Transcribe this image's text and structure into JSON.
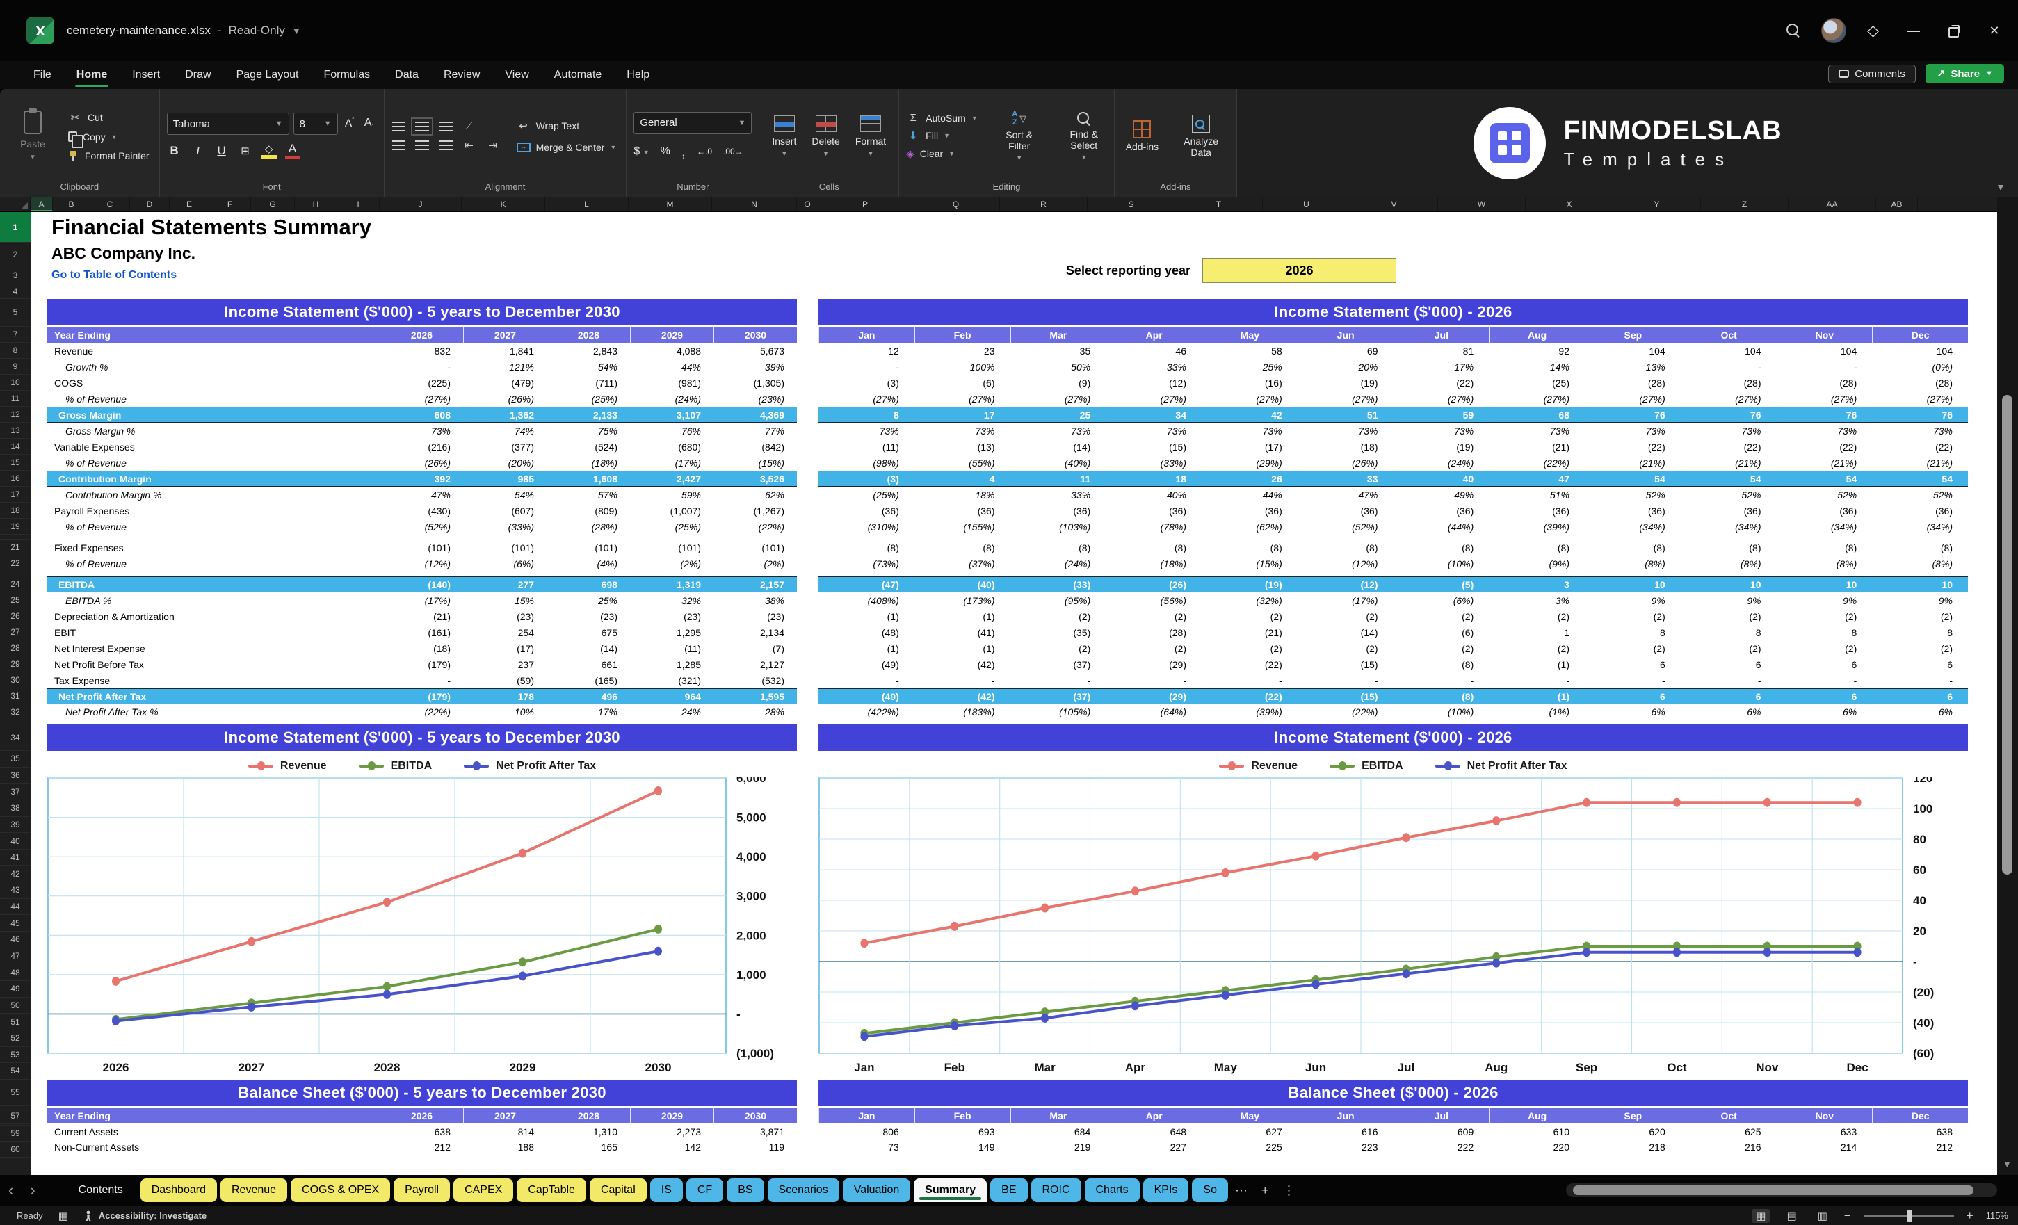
{
  "window": {
    "file": "cemetery-maintenance.xlsx",
    "separator": "-",
    "mode": "Read-Only"
  },
  "menu": {
    "tabs": [
      "File",
      "Home",
      "Insert",
      "Draw",
      "Page Layout",
      "Formulas",
      "Data",
      "Review",
      "View",
      "Automate",
      "Help"
    ],
    "active": "Home",
    "comments_label": "Comments",
    "share_label": "Share"
  },
  "ribbon": {
    "clipboard": {
      "label": "Clipboard",
      "paste": "Paste",
      "cut": "Cut",
      "copy": "Copy",
      "format_painter": "Format Painter"
    },
    "font": {
      "label": "Font",
      "family": "Tahoma",
      "size": "8",
      "bold": "B",
      "italic": "I",
      "underline": "U"
    },
    "alignment": {
      "label": "Alignment",
      "wrap_text": "Wrap Text",
      "merge_center": "Merge & Center"
    },
    "number": {
      "label": "Number",
      "format": "General",
      "currency": "$",
      "percent": "%",
      "comma": ",",
      "inc_dec": "←.0",
      "dec_dec": ".00→"
    },
    "cells": {
      "label": "Cells",
      "insert": "Insert",
      "delete": "Delete",
      "format": "Format"
    },
    "editing": {
      "label": "Editing",
      "autosum": "AutoSum",
      "fill": "Fill",
      "clear": "Clear",
      "sort_filter": "Sort & Filter",
      "find_select": "Find & Select"
    },
    "addins": {
      "label": "Add-ins",
      "addins": "Add-ins",
      "analyze": "Analyze Data"
    },
    "logo": {
      "line1": "FINMODELSLAB",
      "line2": "Templates"
    }
  },
  "colors": {
    "banner": "#4242D8",
    "table_header": "#6C6CE2",
    "subtotal": "#41B3E6",
    "selected_year_fill": "#F6EE71",
    "link": "#1155CC",
    "tab_yellow": "#F2E969",
    "tab_blue": "#4FB7E8",
    "active_tab_underline": "#1F7244",
    "share_green": "#23A047",
    "revenue": "#E8756D",
    "ebitda": "#6A9A42",
    "npat": "#4853C9"
  },
  "sheet": {
    "columns": [
      "A",
      "B",
      "C",
      "D",
      "E",
      "F",
      "G",
      "H",
      "I",
      "J",
      "K",
      "L",
      "M",
      "N",
      "O",
      "P",
      "Q",
      "R",
      "S",
      "T",
      "U",
      "V",
      "W",
      "X",
      "Y",
      "Z",
      "AA",
      "AB"
    ],
    "row_range": [
      1,
      60
    ],
    "title": "Financial Statements Summary",
    "company": "ABC Company Inc.",
    "toc_link": "Go to Table of Contents",
    "reporting_year_label": "Select reporting year",
    "reporting_year": "2026",
    "is5": {
      "banner": "Income Statement ($'000) - 5 years to December 2030",
      "header": "Year Ending",
      "years": [
        "2026",
        "2027",
        "2028",
        "2029",
        "2030"
      ]
    },
    "is12": {
      "banner": "Income Statement ($'000) - 2026",
      "months": [
        "Jan",
        "Feb",
        "Mar",
        "Apr",
        "May",
        "Jun",
        "Jul",
        "Aug",
        "Sep",
        "Oct",
        "Nov",
        "Dec"
      ]
    },
    "is_rows": [
      {
        "label": "Revenue",
        "style": "normal",
        "y": [
          "832",
          "1,841",
          "2,843",
          "4,088",
          "5,673"
        ],
        "m": [
          "12",
          "23",
          "35",
          "46",
          "58",
          "69",
          "81",
          "92",
          "104",
          "104",
          "104",
          "104"
        ]
      },
      {
        "label": "Growth %",
        "style": "pct",
        "y": [
          "-",
          "121%",
          "54%",
          "44%",
          "39%"
        ],
        "m": [
          "-",
          "100%",
          "50%",
          "33%",
          "25%",
          "20%",
          "17%",
          "14%",
          "13%",
          "-",
          "-",
          "(0%)"
        ]
      },
      {
        "label": "COGS",
        "style": "normal",
        "y": [
          "(225)",
          "(479)",
          "(711)",
          "(981)",
          "(1,305)"
        ],
        "m": [
          "(3)",
          "(6)",
          "(9)",
          "(12)",
          "(16)",
          "(19)",
          "(22)",
          "(25)",
          "(28)",
          "(28)",
          "(28)",
          "(28)"
        ]
      },
      {
        "label": "% of Revenue",
        "style": "pct",
        "y": [
          "(27%)",
          "(26%)",
          "(25%)",
          "(24%)",
          "(23%)"
        ],
        "m": [
          "(27%)",
          "(27%)",
          "(27%)",
          "(27%)",
          "(27%)",
          "(27%)",
          "(27%)",
          "(27%)",
          "(27%)",
          "(27%)",
          "(27%)",
          "(27%)"
        ]
      },
      {
        "label": "Gross Margin",
        "style": "total",
        "y": [
          "608",
          "1,362",
          "2,133",
          "3,107",
          "4,369"
        ],
        "m": [
          "8",
          "17",
          "25",
          "34",
          "42",
          "51",
          "59",
          "68",
          "76",
          "76",
          "76",
          "76"
        ]
      },
      {
        "label": "Gross Margin %",
        "style": "pct",
        "y": [
          "73%",
          "74%",
          "75%",
          "76%",
          "77%"
        ],
        "m": [
          "73%",
          "73%",
          "73%",
          "73%",
          "73%",
          "73%",
          "73%",
          "73%",
          "73%",
          "73%",
          "73%",
          "73%"
        ]
      },
      {
        "label": "Variable Expenses",
        "style": "normal",
        "y": [
          "(216)",
          "(377)",
          "(524)",
          "(680)",
          "(842)"
        ],
        "m": [
          "(11)",
          "(13)",
          "(14)",
          "(15)",
          "(17)",
          "(18)",
          "(19)",
          "(21)",
          "(22)",
          "(22)",
          "(22)",
          "(22)"
        ]
      },
      {
        "label": "% of Revenue",
        "style": "pct",
        "y": [
          "(26%)",
          "(20%)",
          "(18%)",
          "(17%)",
          "(15%)"
        ],
        "m": [
          "(98%)",
          "(55%)",
          "(40%)",
          "(33%)",
          "(29%)",
          "(26%)",
          "(24%)",
          "(22%)",
          "(21%)",
          "(21%)",
          "(21%)",
          "(21%)"
        ]
      },
      {
        "label": "Contribution Margin",
        "style": "total",
        "y": [
          "392",
          "985",
          "1,608",
          "2,427",
          "3,526"
        ],
        "m": [
          "(3)",
          "4",
          "11",
          "18",
          "26",
          "33",
          "40",
          "47",
          "54",
          "54",
          "54",
          "54"
        ]
      },
      {
        "label": "Contribution Margin %",
        "style": "pct",
        "y": [
          "47%",
          "54%",
          "57%",
          "59%",
          "62%"
        ],
        "m": [
          "(25%)",
          "18%",
          "33%",
          "40%",
          "44%",
          "47%",
          "49%",
          "51%",
          "52%",
          "52%",
          "52%",
          "52%"
        ]
      },
      {
        "label": "Payroll Expenses",
        "style": "normal",
        "y": [
          "(430)",
          "(607)",
          "(809)",
          "(1,007)",
          "(1,267)"
        ],
        "m": [
          "(36)",
          "(36)",
          "(36)",
          "(36)",
          "(36)",
          "(36)",
          "(36)",
          "(36)",
          "(36)",
          "(36)",
          "(36)",
          "(36)"
        ]
      },
      {
        "label": "% of Revenue",
        "style": "pct",
        "y": [
          "(52%)",
          "(33%)",
          "(28%)",
          "(25%)",
          "(22%)"
        ],
        "m": [
          "(310%)",
          "(155%)",
          "(103%)",
          "(78%)",
          "(62%)",
          "(52%)",
          "(44%)",
          "(39%)",
          "(34%)",
          "(34%)",
          "(34%)",
          "(34%)"
        ]
      },
      {
        "style": "spacer"
      },
      {
        "label": "Fixed Expenses",
        "style": "normal",
        "y": [
          "(101)",
          "(101)",
          "(101)",
          "(101)",
          "(101)"
        ],
        "m": [
          "(8)",
          "(8)",
          "(8)",
          "(8)",
          "(8)",
          "(8)",
          "(8)",
          "(8)",
          "(8)",
          "(8)",
          "(8)",
          "(8)"
        ]
      },
      {
        "label": "% of Revenue",
        "style": "pct",
        "y": [
          "(12%)",
          "(6%)",
          "(4%)",
          "(2%)",
          "(2%)"
        ],
        "m": [
          "(73%)",
          "(37%)",
          "(24%)",
          "(18%)",
          "(15%)",
          "(12%)",
          "(10%)",
          "(9%)",
          "(8%)",
          "(8%)",
          "(8%)",
          "(8%)"
        ]
      },
      {
        "style": "spacer"
      },
      {
        "label": "EBITDA",
        "style": "total",
        "y": [
          "(140)",
          "277",
          "698",
          "1,319",
          "2,157"
        ],
        "m": [
          "(47)",
          "(40)",
          "(33)",
          "(26)",
          "(19)",
          "(12)",
          "(5)",
          "3",
          "10",
          "10",
          "10",
          "10"
        ]
      },
      {
        "label": "EBITDA %",
        "style": "pct",
        "y": [
          "(17%)",
          "15%",
          "25%",
          "32%",
          "38%"
        ],
        "m": [
          "(408%)",
          "(173%)",
          "(95%)",
          "(56%)",
          "(32%)",
          "(17%)",
          "(6%)",
          "3%",
          "9%",
          "9%",
          "9%",
          "9%"
        ]
      },
      {
        "label": "Depreciation & Amortization",
        "style": "normal",
        "y": [
          "(21)",
          "(23)",
          "(23)",
          "(23)",
          "(23)"
        ],
        "m": [
          "(1)",
          "(1)",
          "(2)",
          "(2)",
          "(2)",
          "(2)",
          "(2)",
          "(2)",
          "(2)",
          "(2)",
          "(2)",
          "(2)"
        ]
      },
      {
        "label": "EBIT",
        "style": "normal",
        "y": [
          "(161)",
          "254",
          "675",
          "1,295",
          "2,134"
        ],
        "m": [
          "(48)",
          "(41)",
          "(35)",
          "(28)",
          "(21)",
          "(14)",
          "(6)",
          "1",
          "8",
          "8",
          "8",
          "8"
        ]
      },
      {
        "label": "Net Interest Expense",
        "style": "normal",
        "y": [
          "(18)",
          "(17)",
          "(14)",
          "(11)",
          "(7)"
        ],
        "m": [
          "(1)",
          "(1)",
          "(2)",
          "(2)",
          "(2)",
          "(2)",
          "(2)",
          "(2)",
          "(2)",
          "(2)",
          "(2)",
          "(2)"
        ]
      },
      {
        "label": "Net Profit Before Tax",
        "style": "normal",
        "y": [
          "(179)",
          "237",
          "661",
          "1,285",
          "2,127"
        ],
        "m": [
          "(49)",
          "(42)",
          "(37)",
          "(29)",
          "(22)",
          "(15)",
          "(8)",
          "(1)",
          "6",
          "6",
          "6",
          "6"
        ]
      },
      {
        "label": "Tax Expense",
        "style": "normal",
        "y": [
          "-",
          "(59)",
          "(165)",
          "(321)",
          "(532)"
        ],
        "m": [
          "-",
          "-",
          "-",
          "-",
          "-",
          "-",
          "-",
          "-",
          "-",
          "-",
          "-",
          "-"
        ]
      },
      {
        "label": "Net Profit After Tax",
        "style": "total",
        "y": [
          "(179)",
          "178",
          "496",
          "964",
          "1,595"
        ],
        "m": [
          "(49)",
          "(42)",
          "(37)",
          "(29)",
          "(22)",
          "(15)",
          "(8)",
          "(1)",
          "6",
          "6",
          "6",
          "6"
        ]
      },
      {
        "label": "Net Profit After Tax %",
        "style": "pct",
        "y": [
          "(22%)",
          "10%",
          "17%",
          "24%",
          "28%"
        ],
        "m": [
          "(422%)",
          "(183%)",
          "(105%)",
          "(64%)",
          "(39%)",
          "(22%)",
          "(10%)",
          "(1%)",
          "6%",
          "6%",
          "6%",
          "6%"
        ]
      }
    ],
    "bs5": {
      "banner": "Balance Sheet ($'000) - 5 years to December 2030",
      "header": "Year Ending",
      "years": [
        "2026",
        "2027",
        "2028",
        "2029",
        "2030"
      ]
    },
    "bs12": {
      "banner": "Balance Sheet ($'000) - 2026",
      "months": [
        "Jan",
        "Feb",
        "Mar",
        "Apr",
        "May",
        "Jun",
        "Jul",
        "Aug",
        "Sep",
        "Oct",
        "Nov",
        "Dec"
      ]
    },
    "bs_rows": [
      {
        "label": "Current Assets",
        "style": "normal",
        "y": [
          "638",
          "814",
          "1,310",
          "2,273",
          "3,871"
        ],
        "m": [
          "806",
          "693",
          "684",
          "648",
          "627",
          "616",
          "609",
          "610",
          "620",
          "625",
          "633",
          "638"
        ]
      },
      {
        "label": "Non-Current Assets",
        "style": "normal",
        "y": [
          "212",
          "188",
          "165",
          "142",
          "119"
        ],
        "m": [
          "73",
          "149",
          "219",
          "227",
          "225",
          "223",
          "222",
          "220",
          "218",
          "216",
          "214",
          "212"
        ]
      }
    ]
  },
  "chart_data": [
    {
      "type": "line",
      "title": "Income Statement ($'000) - 5 years to December 2030",
      "categories": [
        "2026",
        "2027",
        "2028",
        "2029",
        "2030"
      ],
      "series": [
        {
          "name": "Revenue",
          "color": "#E8756D",
          "values": [
            832,
            1841,
            2843,
            4088,
            5673
          ]
        },
        {
          "name": "EBITDA",
          "color": "#6A9A42",
          "values": [
            -140,
            277,
            698,
            1319,
            2157
          ]
        },
        {
          "name": "Net Profit After Tax",
          "color": "#4853C9",
          "values": [
            -179,
            178,
            496,
            964,
            1595
          ]
        }
      ],
      "ylim": [
        -1000,
        6000
      ],
      "ytick": 1000,
      "ytick_labels": [
        "6,000",
        "5,000",
        "4,000",
        "3,000",
        "2,000",
        "1,000",
        "-",
        "(1,000)"
      ],
      "legend_position": "top",
      "grid": true
    },
    {
      "type": "line",
      "title": "Income Statement ($'000) - 2026",
      "categories": [
        "Jan",
        "Feb",
        "Mar",
        "Apr",
        "May",
        "Jun",
        "Jul",
        "Aug",
        "Sep",
        "Oct",
        "Nov",
        "Dec"
      ],
      "series": [
        {
          "name": "Revenue",
          "color": "#E8756D",
          "values": [
            12,
            23,
            35,
            46,
            58,
            69,
            81,
            92,
            104,
            104,
            104,
            104
          ]
        },
        {
          "name": "EBITDA",
          "color": "#6A9A42",
          "values": [
            -47,
            -40,
            -33,
            -26,
            -19,
            -12,
            -5,
            3,
            10,
            10,
            10,
            10
          ]
        },
        {
          "name": "Net Profit After Tax",
          "color": "#4853C9",
          "values": [
            -49,
            -42,
            -37,
            -29,
            -22,
            -15,
            -8,
            -1,
            6,
            6,
            6,
            6
          ]
        }
      ],
      "ylim": [
        -60,
        120
      ],
      "ytick": 20,
      "ytick_labels": [
        "120",
        "100",
        "80",
        "60",
        "40",
        "20",
        "-",
        "(20)",
        "(40)",
        "(60)"
      ],
      "legend_position": "top",
      "grid": true
    }
  ],
  "tabs_bar": {
    "tabs": [
      {
        "label": "Contents",
        "color": "plain"
      },
      {
        "label": "Dashboard",
        "color": "yellow"
      },
      {
        "label": "Revenue",
        "color": "yellow"
      },
      {
        "label": "COGS & OPEX",
        "color": "yellow"
      },
      {
        "label": "Payroll",
        "color": "yellow"
      },
      {
        "label": "CAPEX",
        "color": "yellow"
      },
      {
        "label": "CapTable",
        "color": "yellow"
      },
      {
        "label": "Capital",
        "color": "yellow"
      },
      {
        "label": "IS",
        "color": "blue"
      },
      {
        "label": "CF",
        "color": "blue"
      },
      {
        "label": "BS",
        "color": "blue"
      },
      {
        "label": "Scenarios",
        "color": "blue"
      },
      {
        "label": "Valuation",
        "color": "blue"
      },
      {
        "label": "Summary",
        "color": "active"
      },
      {
        "label": "BE",
        "color": "blue"
      },
      {
        "label": "ROIC",
        "color": "blue"
      },
      {
        "label": "Charts",
        "color": "blue"
      },
      {
        "label": "KPIs",
        "color": "blue"
      },
      {
        "label": "So",
        "color": "blue"
      }
    ],
    "active": "Summary",
    "more": "⋯",
    "add": "+"
  },
  "status_bar": {
    "ready": "Ready",
    "accessibility": "Accessibility: Investigate",
    "zoom": "115%"
  }
}
